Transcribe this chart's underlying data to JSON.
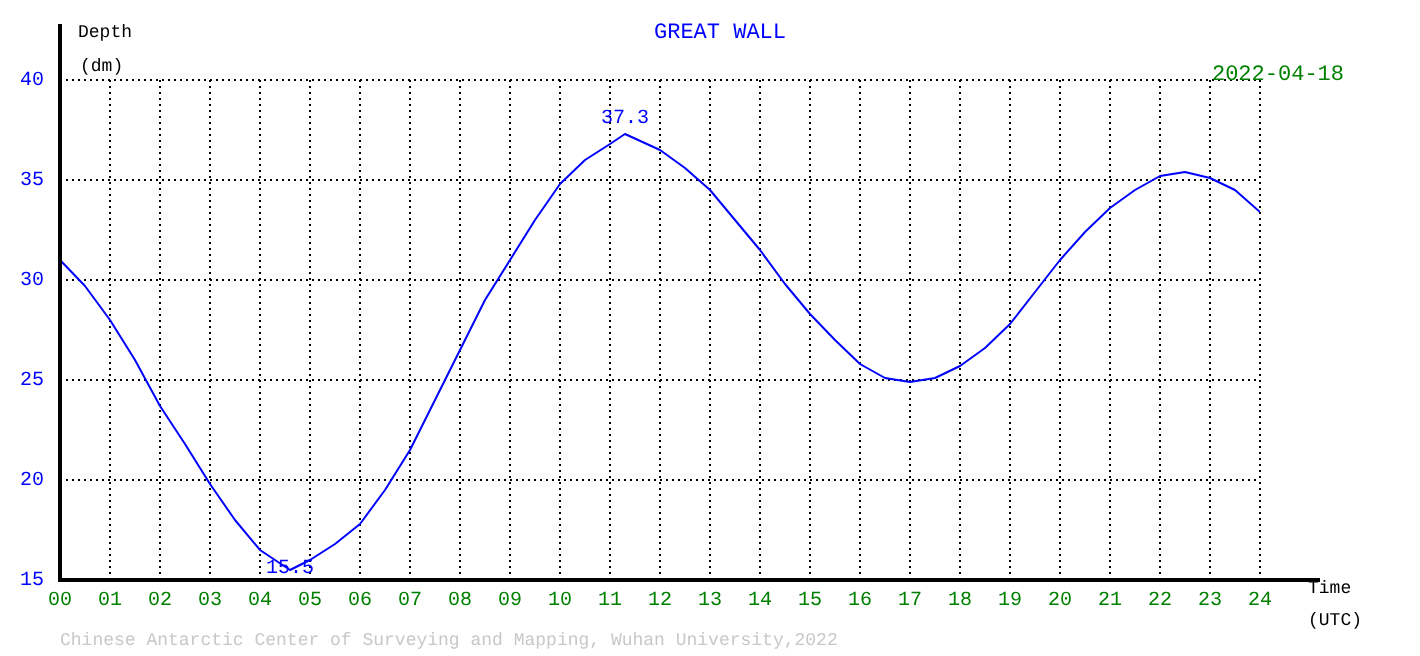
{
  "chart_data": {
    "type": "line",
    "title": "GREAT WALL",
    "xlabel": "Time (UTC)",
    "ylabel": "Depth (dm)",
    "annotations": [
      {
        "text": "37.3",
        "x": 11.3,
        "y": 37.3
      },
      {
        "text": "15.5",
        "x": 4.6,
        "y": 15.5
      },
      "2022-04-18",
      "Chinese Antarctic Center of Surveying and Mapping, Wuhan University,2022"
    ],
    "x": [
      0,
      0.5,
      1,
      1.5,
      2,
      2.5,
      3,
      3.5,
      4,
      4.6,
      5,
      5.5,
      6,
      6.5,
      7,
      7.5,
      8,
      8.5,
      9,
      9.5,
      10,
      10.5,
      11,
      11.3,
      12,
      12.5,
      13,
      13.5,
      14,
      14.5,
      15,
      15.5,
      16,
      16.5,
      17,
      17.5,
      18,
      18.5,
      19,
      19.5,
      20,
      20.5,
      21,
      21.5,
      22,
      22.5,
      23,
      23.5,
      24
    ],
    "series": [
      {
        "color": "#0000ff",
        "values": [
          31.0,
          29.7,
          28.0,
          26.0,
          23.7,
          21.8,
          19.8,
          18.0,
          16.5,
          15.5,
          16.0,
          16.8,
          17.8,
          19.5,
          21.5,
          24.0,
          26.5,
          29.0,
          31.0,
          33.0,
          34.8,
          36.0,
          36.8,
          37.3,
          36.5,
          35.6,
          34.5,
          33.0,
          31.5,
          29.8,
          28.3,
          27.0,
          25.8,
          25.1,
          24.9,
          25.1,
          25.7,
          26.6,
          27.8,
          29.4,
          31.0,
          32.4,
          33.6,
          34.5,
          35.2,
          35.4,
          35.1,
          34.5,
          33.4
        ]
      }
    ],
    "xlim": [
      0,
      24
    ],
    "xticks": [
      {
        "value": 0,
        "label": "00"
      },
      {
        "value": 1,
        "label": "01"
      },
      {
        "value": 2,
        "label": "02"
      },
      {
        "value": 3,
        "label": "03"
      },
      {
        "value": 4,
        "label": "04"
      },
      {
        "value": 5,
        "label": "05"
      },
      {
        "value": 6,
        "label": "06"
      },
      {
        "value": 7,
        "label": "07"
      },
      {
        "value": 8,
        "label": "08"
      },
      {
        "value": 9,
        "label": "09"
      },
      10,
      11,
      12,
      13,
      14,
      15,
      16,
      17,
      18,
      19,
      20,
      21,
      22,
      23,
      24
    ],
    "ylim": [
      15,
      40
    ],
    "yticks": [
      15,
      20,
      25,
      30,
      35,
      40
    ],
    "grid": true,
    "legend": false,
    "marker": "none",
    "line_style": "solid"
  }
}
